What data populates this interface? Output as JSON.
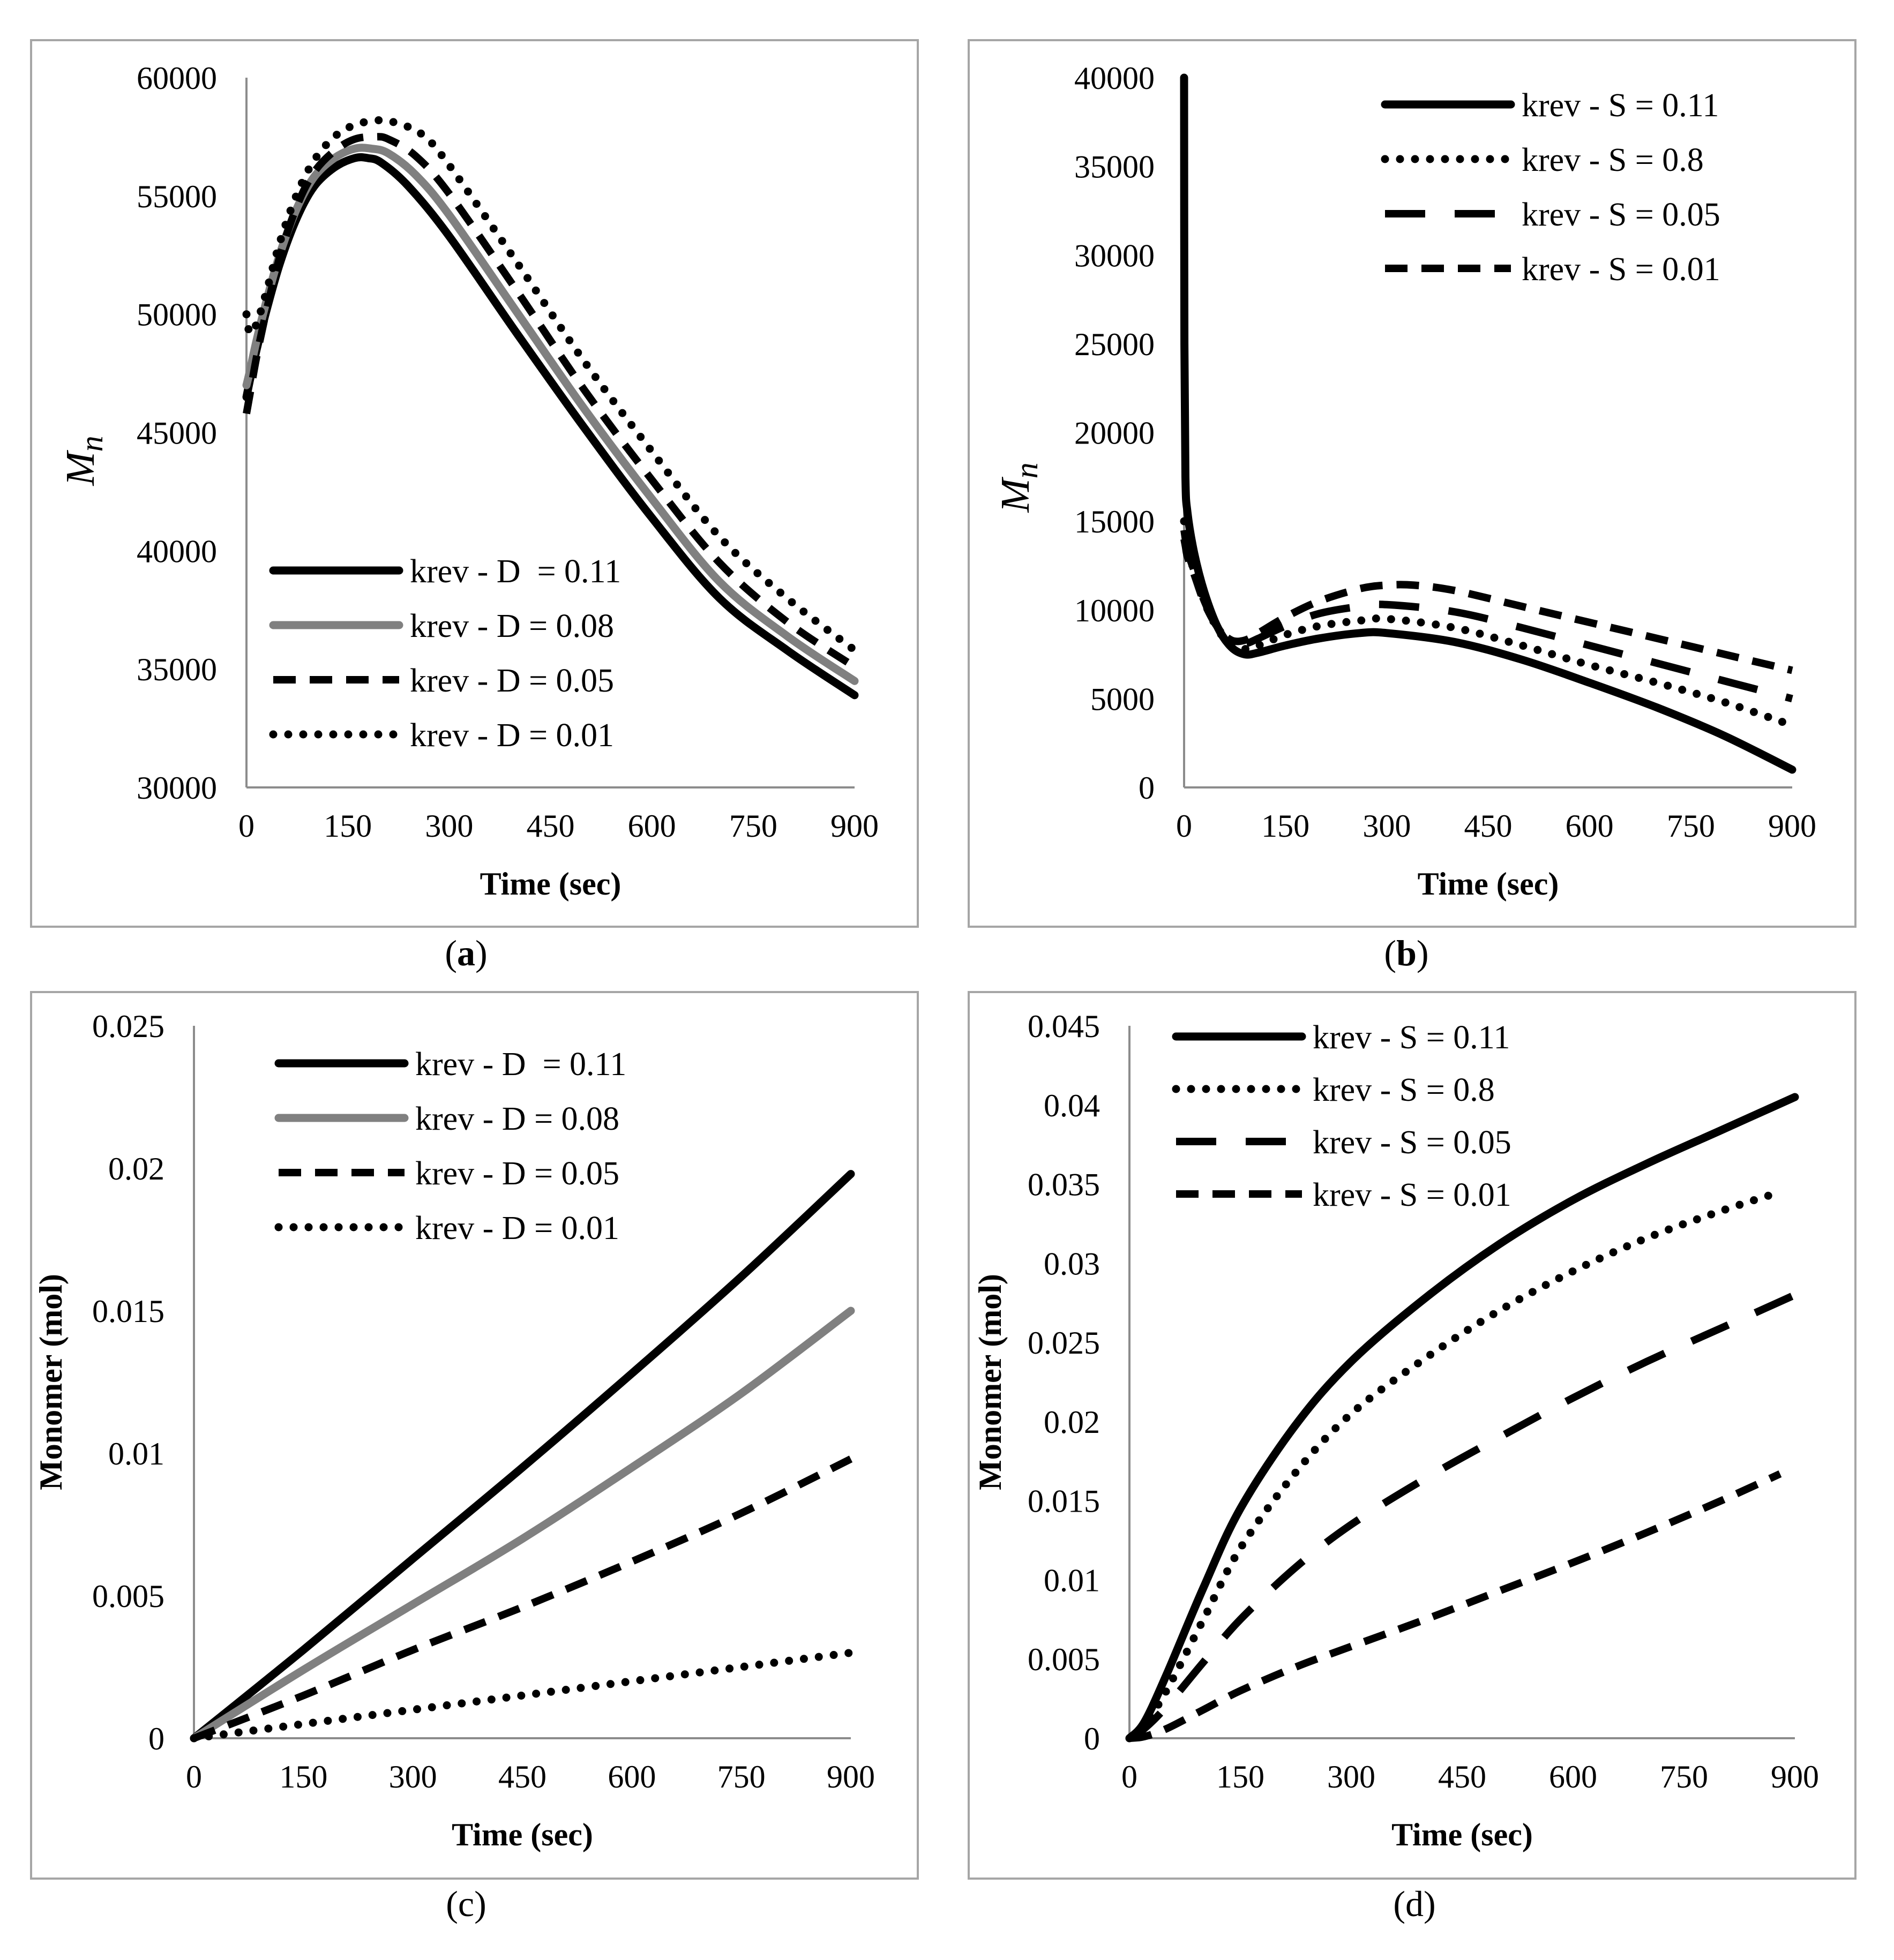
{
  "chart_data": [
    {
      "type": "line",
      "caption": "(a)",
      "caption_bold": true,
      "xlabel": "Time (sec)",
      "ylabel": "M",
      "ylabel_sub": "n",
      "ylabel_style": "italic",
      "xlim": [
        0,
        900
      ],
      "ylim": [
        30000,
        60000
      ],
      "xticks": [
        "0",
        "150",
        "300",
        "450",
        "600",
        "750",
        "900"
      ],
      "yticks": [
        "30000",
        "35000",
        "40000",
        "45000",
        "50000",
        "55000",
        "60000"
      ],
      "legend_position": "bottom-left",
      "series": [
        {
          "name": "krev - D  = 0.11",
          "color": "#000000",
          "style": "solid",
          "x": [
            0,
            5,
            15,
            30,
            50,
            75,
            100,
            130,
            160,
            180,
            200,
            240,
            300,
            400,
            500,
            600,
            700,
            800,
            900
          ],
          "y": [
            46500,
            47200,
            48500,
            50200,
            52200,
            54100,
            55400,
            56200,
            56600,
            56600,
            56400,
            55400,
            53300,
            49200,
            45200,
            41400,
            38000,
            35800,
            33900
          ]
        },
        {
          "name": "krev - D = 0.08",
          "color": "#808080",
          "style": "solid",
          "x": [
            0,
            5,
            15,
            30,
            50,
            75,
            100,
            130,
            160,
            185,
            210,
            250,
            300,
            400,
            500,
            600,
            700,
            800,
            900
          ],
          "y": [
            47000,
            47600,
            48900,
            50600,
            52600,
            54500,
            55800,
            56600,
            57000,
            57000,
            56800,
            55900,
            54200,
            50100,
            46000,
            42200,
            38700,
            36400,
            34500
          ]
        },
        {
          "name": "krev - D = 0.05",
          "color": "#000000",
          "style": "dashed",
          "x": [
            0,
            5,
            15,
            30,
            50,
            75,
            100,
            130,
            160,
            190,
            210,
            250,
            300,
            400,
            500,
            600,
            700,
            800,
            900
          ],
          "y": [
            45800,
            46600,
            48200,
            50200,
            52500,
            54600,
            56000,
            56900,
            57400,
            57500,
            57400,
            56700,
            55100,
            51000,
            46800,
            43000,
            39500,
            37000,
            35100
          ]
        },
        {
          "name": "krev - D = 0.01",
          "color": "#000000",
          "style": "dotted",
          "x": [
            0,
            5,
            15,
            30,
            50,
            75,
            100,
            130,
            160,
            195,
            220,
            260,
            300,
            400,
            500,
            600,
            700,
            800,
            900
          ],
          "y": [
            50000,
            49200,
            49600,
            51000,
            53100,
            55100,
            56500,
            57500,
            58000,
            58200,
            58100,
            57600,
            56300,
            52200,
            48000,
            44200,
            40600,
            38000,
            35800
          ]
        }
      ]
    },
    {
      "type": "line",
      "caption": "(b)",
      "caption_bold": true,
      "xlabel": "Time (sec)",
      "ylabel": "M",
      "ylabel_sub": "n",
      "ylabel_style": "italic",
      "xlim": [
        0,
        900
      ],
      "ylim": [
        0,
        40000
      ],
      "xticks": [
        "0",
        "150",
        "300",
        "450",
        "600",
        "750",
        "900"
      ],
      "yticks": [
        "0",
        "5000",
        "10000",
        "15000",
        "20000",
        "25000",
        "30000",
        "35000",
        "40000"
      ],
      "legend_position": "top-right",
      "series": [
        {
          "name": "krev - S = 0.11",
          "color": "#000000",
          "style": "solid",
          "x": [
            0,
            0.5,
            2,
            5,
            15,
            30,
            50,
            70,
            90,
            110,
            150,
            200,
            260,
            300,
            400,
            500,
            600,
            700,
            800,
            900
          ],
          "y": [
            40000,
            25000,
            17500,
            15500,
            13200,
            11000,
            9000,
            7900,
            7500,
            7600,
            8000,
            8400,
            8700,
            8700,
            8200,
            7200,
            5900,
            4500,
            2900,
            1000
          ]
        },
        {
          "name": "krev - S = 0.8",
          "color": "#000000",
          "style": "dotted",
          "x": [
            0,
            2,
            5,
            15,
            30,
            50,
            70,
            90,
            110,
            150,
            200,
            260,
            300,
            400,
            500,
            600,
            700,
            800,
            900
          ],
          "y": [
            15000,
            14200,
            13400,
            12200,
            10500,
            8900,
            8000,
            7800,
            8000,
            8600,
            9100,
            9400,
            9500,
            9000,
            8000,
            6900,
            5900,
            4800,
            3500
          ]
        },
        {
          "name": "krev - S = 0.05",
          "color": "#000000",
          "style": "longdash",
          "x": [
            0,
            2,
            5,
            15,
            30,
            50,
            70,
            90,
            110,
            150,
            200,
            260,
            300,
            400,
            500,
            600,
            700,
            800,
            900
          ],
          "y": [
            14500,
            14000,
            13300,
            12200,
            10500,
            9000,
            8200,
            8100,
            8400,
            9100,
            9800,
            10200,
            10300,
            9900,
            9000,
            8000,
            7000,
            6000,
            5000
          ]
        },
        {
          "name": "krev - S = 0.01",
          "color": "#000000",
          "style": "dashed",
          "x": [
            0,
            2,
            5,
            15,
            30,
            50,
            70,
            90,
            110,
            150,
            200,
            260,
            300,
            340,
            400,
            500,
            600,
            700,
            800,
            900
          ],
          "y": [
            14000,
            13600,
            13000,
            12000,
            10400,
            9000,
            8300,
            8300,
            8700,
            9600,
            10500,
            11200,
            11400,
            11400,
            11100,
            10200,
            9300,
            8400,
            7500,
            6600
          ]
        }
      ]
    },
    {
      "type": "line",
      "caption": "(c)",
      "caption_bold": false,
      "xlabel": "Time (sec)",
      "ylabel": "Monomer (mol)",
      "ylabel_style": "bold",
      "xlim": [
        0,
        900
      ],
      "ylim": [
        0,
        0.025
      ],
      "xticks": [
        "0",
        "150",
        "300",
        "450",
        "600",
        "750",
        "900"
      ],
      "yticks": [
        "0",
        "0.005",
        "0.01",
        "0.015",
        "0.02",
        "0.025"
      ],
      "legend_position": "top",
      "series": [
        {
          "name": "krev - D  = 0.11",
          "color": "#000000",
          "style": "solid",
          "x": [
            0,
            150,
            300,
            450,
            600,
            750,
            900
          ],
          "y": [
            0,
            0.0031,
            0.0063,
            0.0095,
            0.0128,
            0.0162,
            0.0198
          ]
        },
        {
          "name": "krev - D = 0.08",
          "color": "#808080",
          "style": "solid",
          "x": [
            0,
            150,
            300,
            450,
            600,
            750,
            900
          ],
          "y": [
            0,
            0.0024,
            0.0047,
            0.007,
            0.0095,
            0.0121,
            0.015
          ]
        },
        {
          "name": "krev - D = 0.05",
          "color": "#000000",
          "style": "dashed",
          "x": [
            0,
            150,
            300,
            450,
            600,
            750,
            900
          ],
          "y": [
            0,
            0.0015,
            0.0031,
            0.0046,
            0.0062,
            0.0079,
            0.0098
          ]
        },
        {
          "name": "krev - D = 0.01",
          "color": "#000000",
          "style": "dotted",
          "x": [
            0,
            150,
            300,
            450,
            600,
            750,
            900
          ],
          "y": [
            0,
            0.0005,
            0.001,
            0.0015,
            0.002,
            0.0025,
            0.003
          ]
        }
      ]
    },
    {
      "type": "line",
      "caption": "(d)",
      "caption_bold": false,
      "xlabel": "Time (sec)",
      "ylabel": "Monomer (mol)",
      "ylabel_style": "bold",
      "xlim": [
        0,
        900
      ],
      "ylim": [
        0,
        0.045
      ],
      "xticks": [
        "0",
        "150",
        "300",
        "450",
        "600",
        "750",
        "900"
      ],
      "yticks": [
        "0",
        "0.005",
        "0.01",
        "0.015",
        "0.02",
        "0.025",
        "0.03",
        "0.035",
        "0.04",
        "0.045"
      ],
      "legend_position": "top-left",
      "series": [
        {
          "name": "krev - S = 0.11",
          "color": "#000000",
          "style": "solid",
          "x": [
            0,
            20,
            50,
            100,
            150,
            225,
            300,
            400,
            500,
            600,
            700,
            800,
            900
          ],
          "y": [
            0,
            0.001,
            0.004,
            0.0095,
            0.0145,
            0.0198,
            0.0238,
            0.0278,
            0.0312,
            0.034,
            0.0363,
            0.0384,
            0.0405
          ]
        },
        {
          "name": "krev - S = 0.8",
          "color": "#000000",
          "style": "dotted",
          "x": [
            0,
            20,
            50,
            100,
            150,
            225,
            300,
            400,
            500,
            600,
            700,
            800,
            880
          ],
          "y": [
            0,
            0.0008,
            0.003,
            0.0075,
            0.012,
            0.0168,
            0.0205,
            0.024,
            0.027,
            0.0295,
            0.0316,
            0.0333,
            0.0345
          ]
        },
        {
          "name": "krev - S = 0.05",
          "color": "#000000",
          "style": "longdash",
          "x": [
            0,
            20,
            50,
            100,
            150,
            225,
            300,
            400,
            500,
            600,
            700,
            800,
            900
          ],
          "y": [
            0,
            0.0006,
            0.002,
            0.0048,
            0.0075,
            0.0108,
            0.0135,
            0.0164,
            0.019,
            0.0215,
            0.0238,
            0.0259,
            0.028
          ]
        },
        {
          "name": "krev - S = 0.01",
          "color": "#000000",
          "style": "dashed",
          "x": [
            0,
            20,
            50,
            100,
            150,
            225,
            300,
            400,
            500,
            600,
            700,
            800,
            880
          ],
          "y": [
            0,
            0.0001,
            0.0006,
            0.0018,
            0.003,
            0.0045,
            0.0058,
            0.0075,
            0.0093,
            0.0111,
            0.013,
            0.015,
            0.0167
          ]
        }
      ]
    }
  ]
}
